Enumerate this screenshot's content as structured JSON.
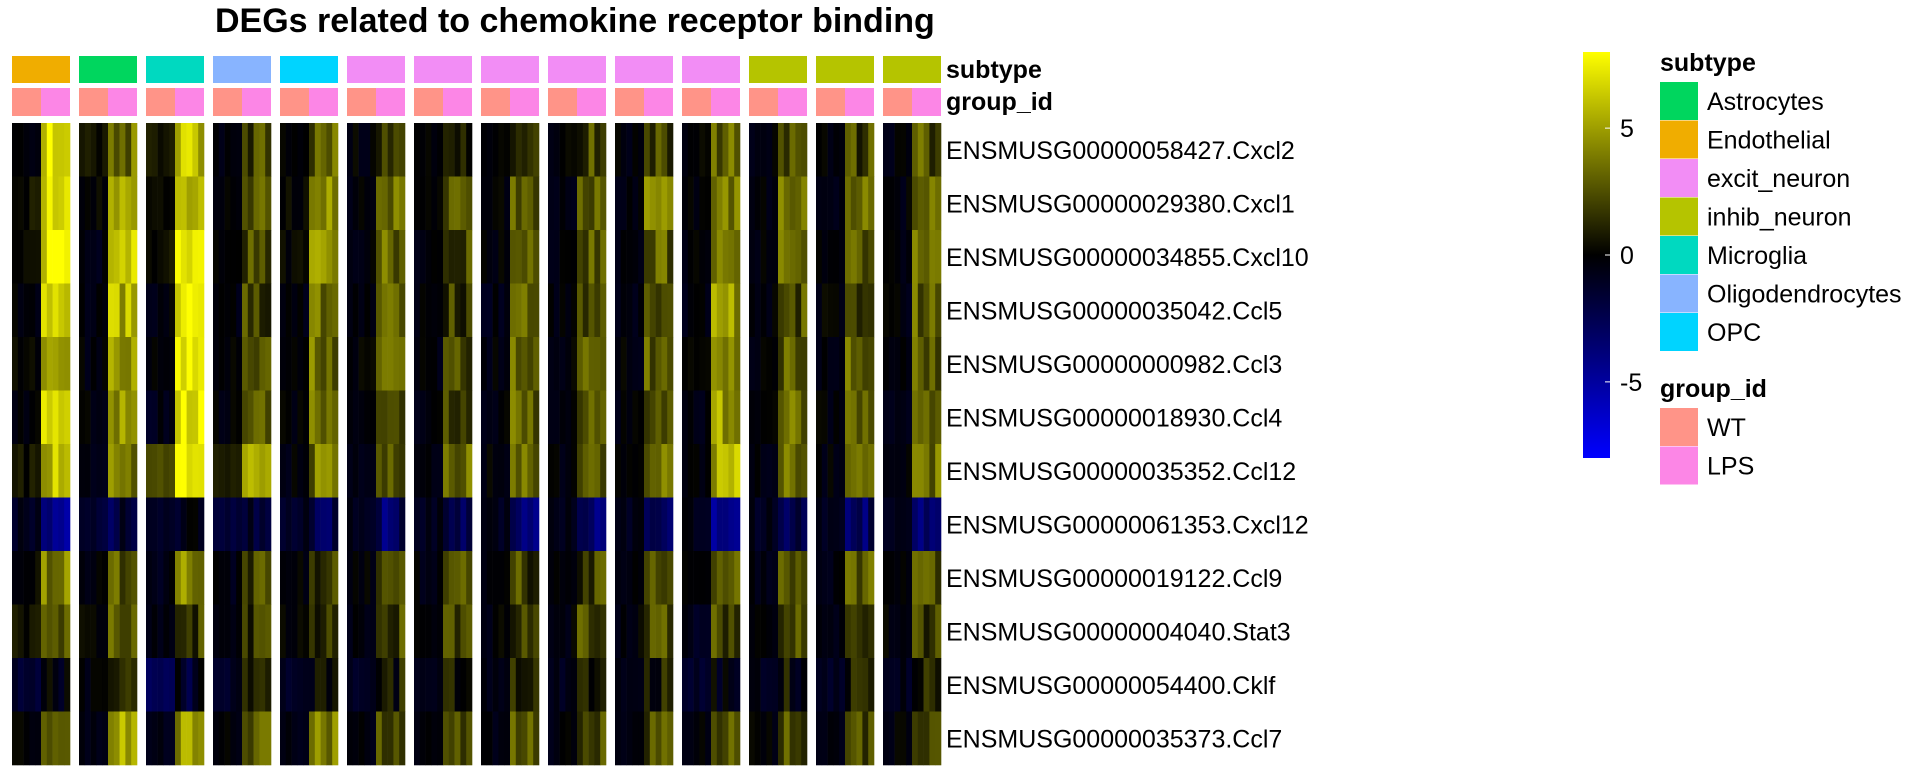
{
  "chart_data": {
    "type": "heatmap",
    "title": "DEGs related to chemokine receptor binding",
    "genes": [
      "ENSMUSG00000058427.Cxcl2",
      "ENSMUSG00000029380.Cxcl1",
      "ENSMUSG00000034855.Cxcl10",
      "ENSMUSG00000035042.Ccl5",
      "ENSMUSG00000000982.Ccl3",
      "ENSMUSG00000018930.Ccl4",
      "ENSMUSG00000035352.Ccl12",
      "ENSMUSG00000061353.Cxcl12",
      "ENSMUSG00000019122.Ccl9",
      "ENSMUSG00000004040.Stat3",
      "ENSMUSG00000054400.Cklf",
      "ENSMUSG00000035373.Ccl7"
    ],
    "annotation_labels": {
      "subtype": "subtype",
      "group_id": "group_id"
    },
    "column_blocks": [
      {
        "subtype": "Endothelial",
        "groups": [
          "WT",
          "LPS"
        ]
      },
      {
        "subtype": "Astrocytes",
        "groups": [
          "WT",
          "LPS"
        ]
      },
      {
        "subtype": "Microglia",
        "groups": [
          "WT",
          "LPS"
        ]
      },
      {
        "subtype": "Oligodendrocytes",
        "groups": [
          "WT",
          "LPS"
        ]
      },
      {
        "subtype": "OPC",
        "groups": [
          "WT",
          "LPS"
        ]
      },
      {
        "subtype": "excit_neuron",
        "groups": [
          "WT",
          "LPS"
        ]
      },
      {
        "subtype": "excit_neuron",
        "groups": [
          "WT",
          "LPS"
        ]
      },
      {
        "subtype": "excit_neuron",
        "groups": [
          "WT",
          "LPS"
        ]
      },
      {
        "subtype": "excit_neuron",
        "groups": [
          "WT",
          "LPS"
        ]
      },
      {
        "subtype": "excit_neuron",
        "groups": [
          "WT",
          "LPS"
        ]
      },
      {
        "subtype": "excit_neuron",
        "groups": [
          "WT",
          "LPS"
        ]
      },
      {
        "subtype": "inhib_neuron",
        "groups": [
          "WT",
          "LPS"
        ]
      },
      {
        "subtype": "inhib_neuron",
        "groups": [
          "WT",
          "LPS"
        ]
      },
      {
        "subtype": "inhib_neuron",
        "groups": [
          "WT",
          "LPS"
        ]
      }
    ],
    "values_WT_mean": [
      [
        0.0,
        0.5,
        0.5,
        -0.3,
        0.0,
        -0.2,
        -0.2,
        -0.3,
        -0.2,
        -0.3,
        -0.2,
        -0.3,
        -0.3,
        -0.3
      ],
      [
        0.5,
        0.3,
        0.5,
        -0.3,
        0.0,
        -0.2,
        -0.3,
        -0.2,
        -0.3,
        -0.3,
        -0.2,
        -0.2,
        -0.3,
        -0.3
      ],
      [
        0.2,
        -0.5,
        0.5,
        -0.3,
        0.0,
        -0.2,
        -0.3,
        -0.3,
        -0.3,
        -0.3,
        -0.3,
        -0.3,
        -0.3,
        -0.2
      ],
      [
        -0.3,
        -0.3,
        -0.3,
        -0.3,
        -0.3,
        -0.2,
        -0.3,
        -0.5,
        -0.2,
        -0.3,
        -0.3,
        -0.3,
        -0.2,
        -0.3
      ],
      [
        0.0,
        -0.3,
        -0.3,
        -0.3,
        -0.3,
        -0.2,
        -0.3,
        -0.3,
        -0.2,
        -0.3,
        -0.3,
        -0.3,
        -0.3,
        -0.2
      ],
      [
        -0.3,
        -0.3,
        -0.7,
        -0.3,
        -0.3,
        -0.2,
        -0.3,
        -0.3,
        -0.3,
        -0.3,
        -0.3,
        -0.3,
        -0.2,
        -0.3
      ],
      [
        0.5,
        -0.3,
        2.0,
        0.5,
        -0.3,
        -0.3,
        -0.2,
        -0.2,
        -0.3,
        -0.3,
        -0.3,
        -0.3,
        -0.3,
        -0.3
      ],
      [
        -1.0,
        -1.5,
        -0.8,
        -1.5,
        -1.0,
        -0.8,
        -0.8,
        -0.9,
        -0.8,
        -0.8,
        -0.6,
        -0.8,
        -0.8,
        -0.8
      ],
      [
        0.2,
        -0.3,
        -0.6,
        -0.5,
        -0.3,
        -0.3,
        -0.3,
        -0.3,
        -0.3,
        -0.3,
        -0.3,
        -0.3,
        -0.3,
        -0.3
      ],
      [
        0.5,
        0.0,
        -0.5,
        -0.5,
        0.0,
        -0.2,
        -0.3,
        -0.2,
        -0.3,
        -0.2,
        -0.7,
        -0.2,
        -0.3,
        -0.2
      ],
      [
        -1.5,
        -0.3,
        -2.5,
        -1.0,
        -1.2,
        -1.0,
        -0.8,
        -0.8,
        -0.8,
        -0.8,
        -1.2,
        -0.8,
        -0.8,
        -0.8
      ],
      [
        -0.3,
        -0.3,
        -0.6,
        -0.3,
        -0.3,
        -0.3,
        -0.3,
        -0.3,
        -0.3,
        -0.3,
        -0.3,
        -0.3,
        -0.3,
        -0.3
      ]
    ],
    "values_LPS_mean": [
      [
        7.0,
        3.5,
        6.0,
        2.0,
        3.0,
        2.0,
        1.5,
        2.0,
        2.0,
        2.0,
        3.0,
        2.5,
        2.0,
        2.5
      ],
      [
        6.5,
        5.0,
        6.5,
        3.0,
        4.5,
        3.0,
        2.5,
        3.0,
        3.0,
        3.5,
        4.0,
        3.5,
        3.0,
        3.5
      ],
      [
        7.0,
        6.5,
        7.0,
        2.5,
        4.0,
        3.0,
        2.5,
        3.0,
        3.0,
        3.0,
        4.0,
        3.0,
        2.5,
        3.0
      ],
      [
        6.0,
        5.5,
        7.5,
        2.0,
        3.5,
        2.5,
        2.0,
        2.5,
        2.5,
        2.5,
        4.5,
        2.5,
        2.0,
        3.0
      ],
      [
        6.0,
        4.5,
        7.5,
        2.5,
        3.5,
        3.0,
        2.5,
        3.0,
        3.0,
        3.0,
        4.5,
        3.0,
        3.0,
        3.0
      ],
      [
        6.0,
        4.5,
        7.5,
        2.5,
        3.0,
        3.0,
        2.5,
        3.0,
        3.0,
        3.0,
        5.0,
        3.0,
        3.0,
        3.0
      ],
      [
        6.0,
        4.0,
        7.0,
        4.5,
        3.5,
        3.0,
        3.0,
        3.0,
        3.0,
        3.5,
        5.5,
        3.5,
        4.5,
        3.5
      ],
      [
        -4.5,
        -2.0,
        -1.0,
        -2.0,
        -2.0,
        -3.0,
        -2.5,
        -3.0,
        -3.0,
        -3.0,
        -4.0,
        -2.5,
        -3.0,
        -3.5
      ],
      [
        4.0,
        2.5,
        4.5,
        2.0,
        2.0,
        2.0,
        2.0,
        2.0,
        2.0,
        2.0,
        2.5,
        2.5,
        2.5,
        2.5
      ],
      [
        2.5,
        2.5,
        2.0,
        1.5,
        2.0,
        2.0,
        2.0,
        2.0,
        2.0,
        2.0,
        2.0,
        2.0,
        2.5,
        2.0
      ],
      [
        -1.0,
        0.8,
        -1.0,
        0.5,
        0.5,
        0.5,
        0.5,
        0.5,
        0.5,
        0.5,
        -0.5,
        0.5,
        0.5,
        0.5
      ],
      [
        4.0,
        5.0,
        5.0,
        2.5,
        3.5,
        2.5,
        2.0,
        2.5,
        2.5,
        2.5,
        3.0,
        2.5,
        2.5,
        2.5
      ]
    ],
    "color_scale": {
      "min": -8,
      "max": 8,
      "stops": [
        {
          "value": -8,
          "color": "#0000ff"
        },
        {
          "value": -4,
          "color": "#00007e"
        },
        {
          "value": 0,
          "color": "#000000"
        },
        {
          "value": 4,
          "color": "#7e7e00"
        },
        {
          "value": 8,
          "color": "#ffff00"
        }
      ],
      "ticks": [
        5,
        0,
        -5
      ],
      "tick_labels": [
        "5",
        "0",
        "-5"
      ]
    },
    "legends": {
      "subtype": {
        "title": "subtype",
        "items": [
          {
            "label": "Astrocytes",
            "color": "#00d65e"
          },
          {
            "label": "Endothelial",
            "color": "#f0ad00"
          },
          {
            "label": "excit_neuron",
            "color": "#f28df5"
          },
          {
            "label": "inhib_neuron",
            "color": "#b5c400"
          },
          {
            "label": "Microglia",
            "color": "#00d9c0"
          },
          {
            "label": "Oligodendrocytes",
            "color": "#88b4ff"
          },
          {
            "label": "OPC",
            "color": "#00d4ff"
          }
        ]
      },
      "group_id": {
        "title": "group_id",
        "items": [
          {
            "label": "WT",
            "color": "#ff9488"
          },
          {
            "label": "LPS",
            "color": "#fc86e6"
          }
        ]
      }
    }
  }
}
